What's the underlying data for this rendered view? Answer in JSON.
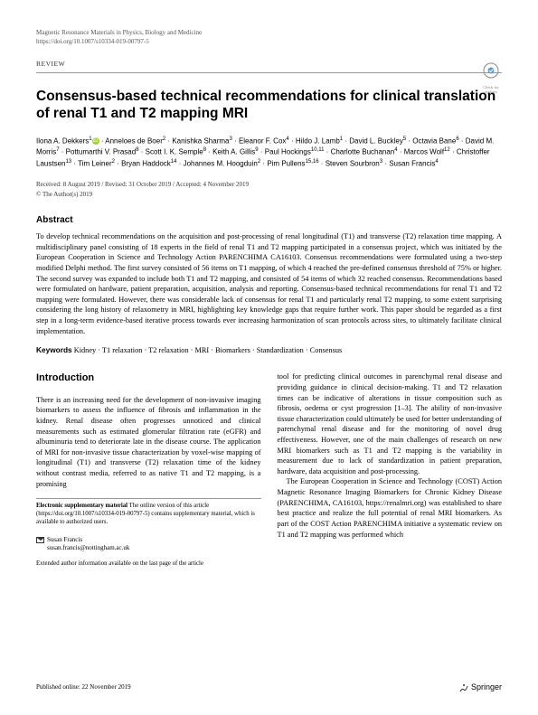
{
  "journal": "Magnetic Resonance Materials in Physics, Biology and Medicine",
  "doi": "https://doi.org/10.1007/s10334-019-00797-5",
  "article_type": "REVIEW",
  "check_updates": "Check for updates",
  "title": "Consensus-based technical recommendations for clinical translation of renal T1 and T2 mapping MRI",
  "authors_html": "Ilona A. Dekkers<sup>1</sup> · Anneloes de Boer<sup>2</sup> · Kanishka Sharma<sup>3</sup> · Eleanor F. Cox<sup>4</sup> · Hildo J. Lamb<sup>1</sup> · David L. Buckley<sup>5</sup> · Octavia Bane<sup>6</sup> · David M. Morris<sup>7</sup> · Pottumarthi V. Prasad<sup>8</sup> · Scott I. K. Semple<sup>8</sup> · Keith A. Gillis<sup>9</sup> · Paul Hockings<sup>10,11</sup> · Charlotte Buchanan<sup>4</sup> · Marcos Wolf<sup>12</sup> · Christoffer Laustsen<sup>13</sup> · Tim Leiner<sup>2</sup> · Bryan Haddock<sup>14</sup> · Johannes M. Hoogduin<sup>2</sup> · Pim Pullens<sup>15,16</sup> · Steven Sourbron<sup>3</sup> · Susan Francis<sup>4</sup>",
  "dates": "Received: 8 August 2019 / Revised: 31 October 2019 / Accepted: 4 November 2019",
  "copyright": "© The Author(s) 2019",
  "abstract_heading": "Abstract",
  "abstract": "To develop technical recommendations on the acquisition and post-processing of renal longitudinal (T1) and transverse (T2) relaxation time mapping. A multidisciplinary panel consisting of 18 experts in the field of renal T1 and T2 mapping participated in a consensus project, which was initiated by the European Cooperation in Science and Technology Action PARENCHIMA CA16103. Consensus recommendations were formulated using a two-step modified Delphi method. The first survey consisted of 56 items on T1 mapping, of which 4 reached the pre-defined consensus threshold of 75% or higher. The second survey was expanded to include both T1 and T2 mapping, and consisted of 54 items of which 32 reached consensus. Recommendations based were formulated on hardware, patient preparation, acquisition, analysis and reporting. Consensus-based technical recommendations for renal T1 and T2 mapping were formulated. However, there was considerable lack of consensus for renal T1 and particularly renal T2 mapping, to some extent surprising considering the long history of relaxometry in MRI, highlighting key knowledge gaps that require further work. This paper should be regarded as a first step in a long-term evidence-based iterative process towards ever increasing harmonization of scan protocols across sites, to ultimately facilitate clinical implementation.",
  "keywords_label": "Keywords",
  "keywords": "Kidney · T1 relaxation · T2 relaxation · MRI · Biomarkers · Standardization · Consensus",
  "intro_heading": "Introduction",
  "intro_col1_p1": "There is an increasing need for the development of non-invasive imaging biomarkers to assess the influence of fibrosis and inflammation in the kidney. Renal disease often progresses unnoticed and clinical measurements such as estimated glomerular filtration rate (eGFR) and albuminuria tend to deteriorate late in the disease course. The application of MRI for non-invasive tissue characterization by voxel-wise mapping of longitudinal (T1) and transverse (T2) relaxation time of the kidney without contrast media, referred to as native T1 and T2 mapping, is a promising",
  "intro_col2_p1": "tool for predicting clinical outcomes in parenchymal renal disease and providing guidance in clinical decision-making. T1 and T2 relaxation times can be indicative of alterations in tissue composition such as fibrosis, oedema or cyst progression [1–3]. The ability of non-invasive tissue characterization could ultimately be used for better understanding of parenchymal renal disease and for the monitoring of novel drug effectiveness. However, one of the main challenges of research on new MRI biomarkers such as T1 and T2 mapping is the variability in measurement due to lack of standardization in patient preparation, hardware, data acquisition and post-processing.",
  "intro_col2_p2": "The European Cooperation in Science and Technology (COST) Action Magnetic Resonance Imaging Biomarkers for Chronic Kidney Disease (PARENCHIMA, CA16103, https://renalmri.org) was established to share best practice and realize the full potential of renal MRI biomarkers. As part of the COST Action PARENCHIMA initiative a systematic review on T1 and T2 mapping was performed which",
  "supp_label": "Electronic supplementary material",
  "supp_text": " The online version of this article (https://doi.org/10.1007/s10334-019-00797-5) contains supplementary material, which is available to authorized users.",
  "corr_name": "Susan Francis",
  "corr_email": "susan.francis@nottingham.ac.uk",
  "ext_author": "Extended author information available on the last page of the article",
  "pub_online": "Published online: 22 November 2019",
  "publisher": "Springer"
}
